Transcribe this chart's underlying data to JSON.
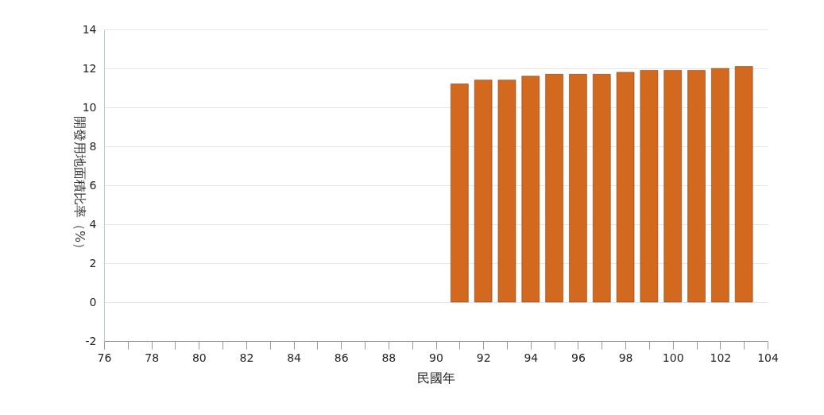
{
  "chart_data": {
    "type": "bar",
    "xlabel": "民國年",
    "ylabel": "開發用地面積比率（%）",
    "x": [
      91,
      92,
      93,
      94,
      95,
      96,
      97,
      98,
      99,
      100,
      101,
      102,
      103
    ],
    "values": [
      11.2,
      11.4,
      11.4,
      11.6,
      11.7,
      11.7,
      11.7,
      11.8,
      11.9,
      11.9,
      11.9,
      12.0,
      12.1
    ],
    "color": "#d2691e",
    "xlim": [
      76,
      104
    ],
    "xticks": [
      76,
      {
        "value": 77,
        "label": null
      },
      78,
      {
        "value": 79,
        "label": null
      },
      80,
      {
        "value": 81,
        "label": null
      },
      82,
      {
        "value": 83,
        "label": null
      },
      84,
      {
        "value": 85,
        "label": null
      },
      86,
      {
        "value": 87,
        "label": null
      },
      88,
      {
        "value": 89,
        "label": null
      },
      90,
      {
        "value": 91,
        "label": null
      },
      92,
      {
        "value": 93,
        "label": null
      },
      94,
      {
        "value": 95,
        "label": null
      },
      96,
      {
        "value": 97,
        "label": null
      },
      98,
      {
        "value": 99,
        "label": null
      },
      100,
      {
        "value": 101,
        "label": null
      },
      102,
      {
        "value": 103,
        "label": null
      },
      104
    ],
    "ylim": [
      -2,
      14
    ],
    "yticks": [
      -2,
      0,
      2,
      4,
      6,
      8,
      10,
      12,
      14
    ],
    "grid": "y"
  }
}
